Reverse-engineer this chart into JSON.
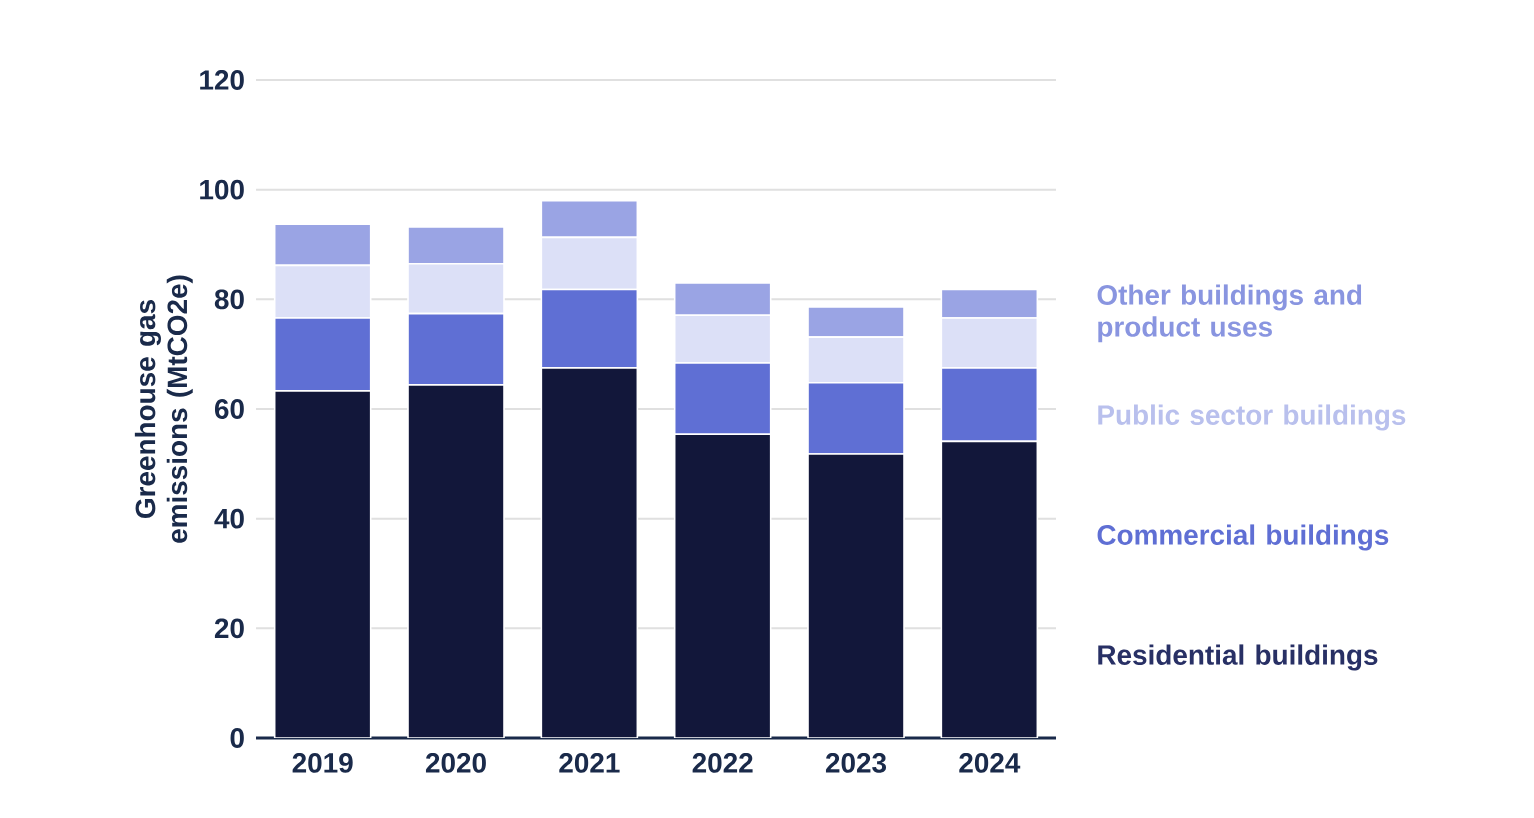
{
  "chart_data": {
    "type": "bar",
    "stacked": true,
    "ylabel": "Greenhouse gas emissions (MtCO2e)",
    "categories": [
      "2019",
      "2020",
      "2021",
      "2022",
      "2023",
      "2024"
    ],
    "series": [
      {
        "name": "Residential buildings",
        "color": "#12173a",
        "values": [
          63.3,
          64.4,
          67.5,
          55.4,
          51.8,
          54.1
        ]
      },
      {
        "name": "Commercial buildings",
        "color": "#5f6fd4",
        "values": [
          13.3,
          13.0,
          14.3,
          13.0,
          13.0,
          13.4
        ]
      },
      {
        "name": "Public sector buildings",
        "color": "#dce0f7",
        "values": [
          9.6,
          9.1,
          9.5,
          8.7,
          8.3,
          9.1
        ]
      },
      {
        "name": "Other buildings and product uses",
        "color": "#9aa4e4",
        "values": [
          7.5,
          6.7,
          6.7,
          5.9,
          5.5,
          5.2
        ]
      }
    ],
    "ylim": [
      0,
      120
    ],
    "yticks": [
      0,
      20,
      40,
      60,
      80,
      100,
      120
    ],
    "grid": "y",
    "legend": "right"
  }
}
